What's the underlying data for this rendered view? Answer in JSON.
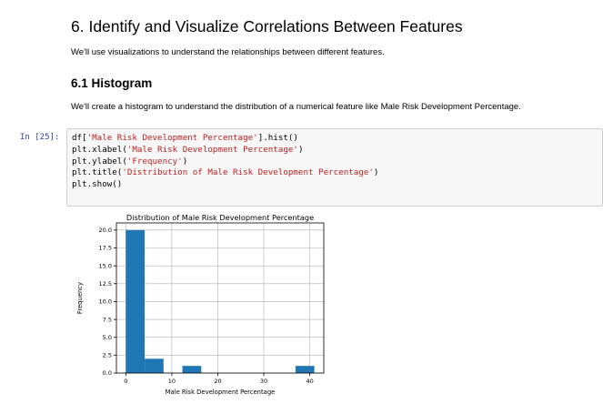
{
  "heading_6": "6. Identify and Visualize Correlations Between Features",
  "paragraph_6": "We'll use visualizations to understand the relationships between different features.",
  "heading_6_1": "6.1 Histogram",
  "paragraph_6_1": "We'll create a histogram to understand the distribution of a numerical feature like Male Risk Development Percentage.",
  "cell": {
    "prompt": "In [25]:",
    "lines": [
      [
        {
          "t": "df[",
          "s": 0
        },
        {
          "t": "'Male Risk Development Percentage'",
          "s": 1
        },
        {
          "t": "].hist()",
          "s": 0
        }
      ],
      [
        {
          "t": "plt.xlabel(",
          "s": 0
        },
        {
          "t": "'Male Risk Development Percentage'",
          "s": 1
        },
        {
          "t": ")",
          "s": 0
        }
      ],
      [
        {
          "t": "plt.ylabel(",
          "s": 0
        },
        {
          "t": "'Frequency'",
          "s": 1
        },
        {
          "t": ")",
          "s": 0
        }
      ],
      [
        {
          "t": "plt.title(",
          "s": 0
        },
        {
          "t": "'Distribution of Male Risk Development Percentage'",
          "s": 1
        },
        {
          "t": ")",
          "s": 0
        }
      ],
      [
        {
          "t": "plt.show()",
          "s": 0
        }
      ]
    ]
  },
  "chart_data": {
    "type": "bar",
    "title": "Distribution of Male Risk Development Percentage",
    "xlabel": "Male Risk Development Percentage",
    "ylabel": "Frequency",
    "bins": [
      {
        "x0": 0.0,
        "x1": 4.1,
        "count": 20
      },
      {
        "x0": 4.1,
        "x1": 8.2,
        "count": 2
      },
      {
        "x0": 8.2,
        "x1": 12.3,
        "count": 0
      },
      {
        "x0": 12.3,
        "x1": 16.4,
        "count": 1
      },
      {
        "x0": 16.4,
        "x1": 20.5,
        "count": 0
      },
      {
        "x0": 20.5,
        "x1": 24.6,
        "count": 0
      },
      {
        "x0": 24.6,
        "x1": 28.7,
        "count": 0
      },
      {
        "x0": 28.7,
        "x1": 32.8,
        "count": 0
      },
      {
        "x0": 32.8,
        "x1": 36.9,
        "count": 0
      },
      {
        "x0": 36.9,
        "x1": 41.0,
        "count": 1
      }
    ],
    "xlim": [
      -2.05,
      43.05
    ],
    "ylim": [
      0,
      21
    ],
    "xticks": [
      0,
      10,
      20,
      30,
      40
    ],
    "xtick_labels": [
      "0",
      "10",
      "20",
      "30",
      "40"
    ],
    "yticks": [
      0,
      2.5,
      5,
      7.5,
      10,
      12.5,
      15,
      17.5,
      20
    ],
    "ytick_labels": [
      "0.0",
      "2.5",
      "5.0",
      "7.5",
      "10.0",
      "12.5",
      "15.0",
      "17.5",
      "20.0"
    ],
    "grid": true,
    "bar_color": "#1f77b4"
  }
}
